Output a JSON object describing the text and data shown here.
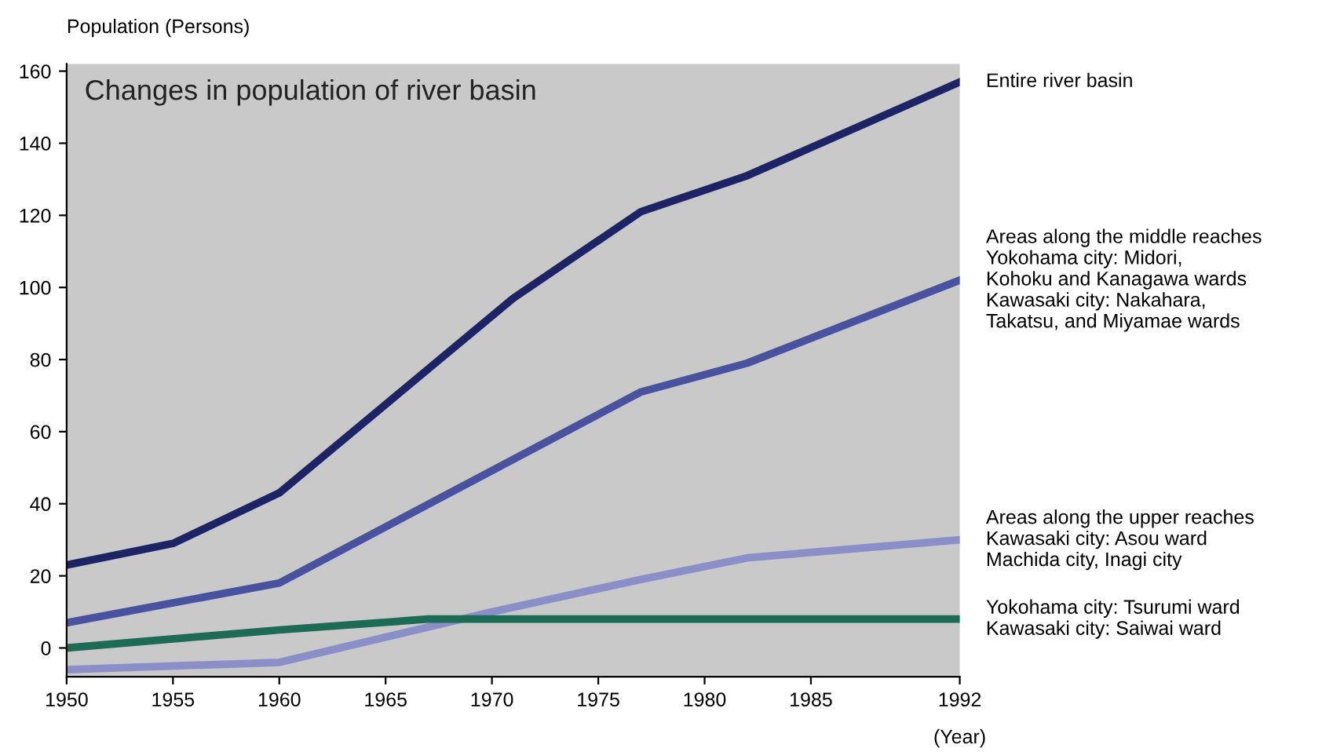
{
  "chart_data": {
    "type": "line",
    "title": "Changes in population of river basin",
    "ylabel": "Population (Persons)",
    "xlabel": "(Year)",
    "series": [
      {
        "name": "Entire river basin",
        "color": "#1c2466",
        "x": [
          1950,
          1955,
          1960,
          1971,
          1977,
          1982,
          1992
        ],
        "values": [
          23,
          29,
          43,
          97,
          121,
          131,
          157
        ]
      },
      {
        "name": "Areas along the middle reaches\nYokohama city: Midori,\nKohoku and Kanagawa wards\nKawasaki city: Nakahara,\nTakatsu, and Miyamae wards",
        "color": "#48529f",
        "x": [
          1950,
          1960,
          1977,
          1982,
          1992
        ],
        "values": [
          7,
          18,
          71,
          79,
          102
        ]
      },
      {
        "name": "Areas along the upper reaches\nKawasaki city: Asou ward\nMachida city, Inagi city",
        "color": "#8a8fc8",
        "x": [
          1950,
          1955,
          1960,
          1970,
          1977,
          1982,
          1992
        ],
        "values": [
          -6,
          -5,
          -4,
          10,
          19,
          25,
          30
        ]
      },
      {
        "name": "Yokohama city: Tsurumi ward\nKawasaki city: Saiwai ward",
        "color": "#1d6b55",
        "x": [
          1950,
          1960,
          1967,
          1992
        ],
        "values": [
          0,
          5,
          8,
          8
        ]
      }
    ],
    "xlim": [
      1950,
      1992
    ],
    "xticks": [
      1950,
      1955,
      1960,
      1965,
      1970,
      1975,
      1980,
      1985,
      1992
    ],
    "ylim": [
      -8,
      162
    ],
    "yticks": [
      0,
      20,
      40,
      60,
      80,
      100,
      120,
      140,
      160
    ],
    "grid": false,
    "legend": false,
    "marker": "none",
    "line_style": "solid"
  }
}
